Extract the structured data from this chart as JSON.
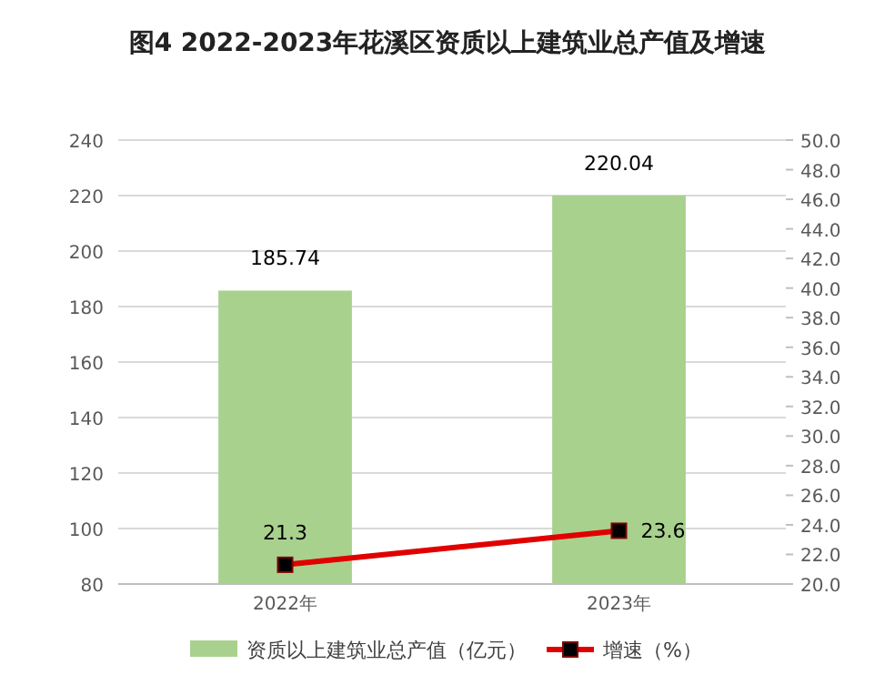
{
  "chart_data": {
    "type": "bar",
    "title": "图4  2022-2023年花溪区资质以上建筑业总产值及增速",
    "categories": [
      "2022年",
      "2023年"
    ],
    "series": [
      {
        "name": "资质以上建筑业总产值（亿元）",
        "color": "#a9d18e",
        "values": [
          185.74,
          220.04
        ]
      },
      {
        "name": "增速（%）",
        "type": "line",
        "axis": "y2",
        "color": "#e00000",
        "values": [
          21.3,
          23.6
        ]
      }
    ],
    "ylim": [
      80,
      240
    ],
    "yticks": [
      80,
      100,
      120,
      140,
      160,
      180,
      200,
      220,
      240
    ],
    "y2lim": [
      20,
      50
    ],
    "y2ticks": [
      {
        "value": 20,
        "label": "20.0"
      },
      {
        "value": 22,
        "label": "22.0"
      },
      {
        "value": 24,
        "label": "24.0"
      },
      {
        "value": 26,
        "label": "26.0"
      },
      {
        "value": 28,
        "label": "28.0"
      },
      {
        "value": 30,
        "label": "30.0"
      },
      {
        "value": 32,
        "label": "32.0"
      },
      {
        "value": 34,
        "label": "34.0"
      },
      {
        "value": 36,
        "label": "36.0"
      },
      {
        "value": 38,
        "label": "38.0"
      },
      {
        "value": 40,
        "label": "40.0"
      },
      {
        "value": 42,
        "label": "42.0"
      },
      {
        "value": 44,
        "label": "44.0"
      },
      {
        "value": 46,
        "label": "46.0"
      },
      {
        "value": 48,
        "label": "48.0"
      },
      {
        "value": 50,
        "label": "50.0"
      }
    ],
    "grid": "y",
    "legend": "bottom",
    "marker": "square",
    "data_labels": true
  }
}
